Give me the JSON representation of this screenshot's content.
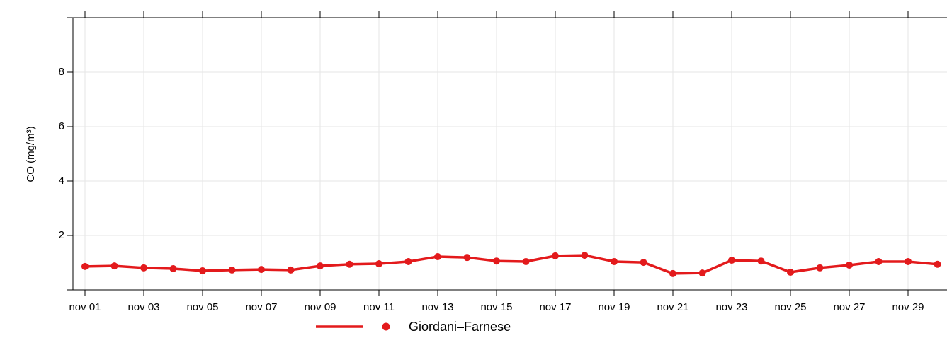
{
  "chart_data": {
    "type": "line",
    "y_label": "CO (mg/m³)",
    "categories": [
      "nov 01",
      null,
      "nov 03",
      null,
      "nov 05",
      null,
      "nov 07",
      null,
      "nov 09",
      null,
      "nov 11",
      null,
      "nov 13",
      null,
      "nov 15",
      null,
      "nov 17",
      null,
      "nov 19",
      null,
      "nov 21",
      null,
      "nov 23",
      null,
      "nov 25",
      null,
      "nov 27",
      null,
      "nov 29",
      null
    ],
    "series": [
      {
        "name": "Giordani–Farnese",
        "color": "#e31a1c",
        "values": [
          0.86,
          0.88,
          0.81,
          0.78,
          0.7,
          0.73,
          0.75,
          0.73,
          0.88,
          0.94,
          0.96,
          1.04,
          1.22,
          1.19,
          1.06,
          1.04,
          1.25,
          1.27,
          1.04,
          1.01,
          0.6,
          0.62,
          1.09,
          1.06,
          0.65,
          0.81,
          0.91,
          1.04,
          1.04,
          0.94
        ]
      }
    ],
    "ylim": [
      0,
      10
    ],
    "yticks": [
      2,
      4,
      6,
      8
    ],
    "grid": true,
    "legend": "bottom"
  }
}
